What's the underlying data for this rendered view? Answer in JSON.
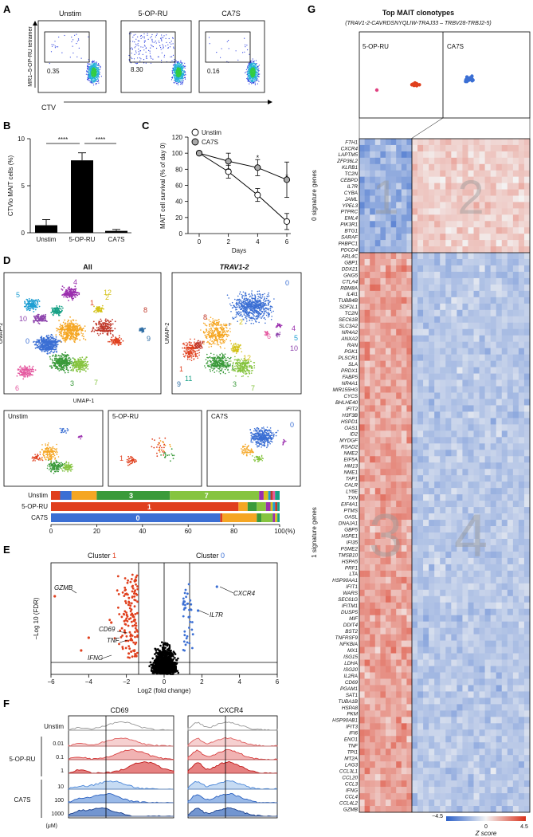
{
  "panels": {
    "A": {
      "label": "A",
      "conditions": [
        "Unstim",
        "5-OP-RU",
        "CA7S"
      ],
      "gate_values": [
        "0.35",
        "8.30",
        "0.16"
      ],
      "ylabel": "MR1–5-OP-RU tetramer",
      "xlabel": "CTV"
    },
    "B": {
      "label": "B",
      "chart_data": {
        "type": "bar",
        "categories": [
          "Unstim",
          "5-OP-RU",
          "CA7S"
        ],
        "values": [
          0.8,
          7.7,
          0.2
        ],
        "errors": [
          0.6,
          0.8,
          0.15
        ],
        "ylabel": "CTVlo MAIT cells (%)",
        "ylim": [
          0,
          10
        ],
        "yticks": [
          "0",
          "5",
          "10"
        ],
        "significance": [
          "****",
          "****"
        ]
      }
    },
    "C": {
      "label": "C",
      "chart_data": {
        "type": "line",
        "x": [
          0,
          2,
          4,
          6
        ],
        "series": [
          {
            "name": "Unstim",
            "values": [
              100,
              77,
              48,
              15
            ],
            "errors": [
              0,
              8,
              8,
              10
            ]
          },
          {
            "name": "CA7S",
            "values": [
              100,
              90,
              82,
              67
            ],
            "errors": [
              0,
              10,
              10,
              22
            ]
          }
        ],
        "xlabel": "Days",
        "ylabel": "MAIT cell survival (% of day 0)",
        "ylim": [
          0,
          120
        ],
        "yticks": [
          "0",
          "20",
          "40",
          "60",
          "80",
          "100",
          "120"
        ],
        "xticks": [
          "0",
          "2",
          "4",
          "6"
        ],
        "stars": [
          "*",
          "*"
        ]
      }
    },
    "D": {
      "label": "D",
      "umap_titles": [
        "All",
        "TRAV1-2"
      ],
      "axis_x": "UMAP-1",
      "axis_y": "UMAP-2",
      "cluster_labels_all": [
        "0",
        "1",
        "2",
        "3",
        "4",
        "5",
        "6",
        "7",
        "8",
        "9",
        "10",
        "11",
        "12"
      ],
      "cluster_labels_trav": [
        "0",
        "1",
        "2",
        "3",
        "4",
        "5",
        "6",
        "7",
        "8",
        "9",
        "10",
        "11",
        "12"
      ],
      "sub_titles": [
        "Unstim",
        "5-OP-RU",
        "CA7S"
      ],
      "sub_labels": [
        "1",
        "0"
      ],
      "bar_rows": [
        "Unstim",
        "5-OP-RU",
        "CA7S"
      ],
      "bar_inner_labels": [
        "3",
        "7",
        "1",
        "0"
      ],
      "bar_ticks": [
        "0",
        "20",
        "40",
        "60",
        "80",
        "100"
      ],
      "bar_unit": "(%)",
      "colors": {
        "c0": "#3b6fd4",
        "c1": "#e0401e",
        "c2": "#f5a623",
        "c3": "#3a9a3a",
        "c7": "#86c440",
        "c4": "#9b2fae",
        "c5": "#1f9fd3",
        "c6": "#e55ba1",
        "c8": "#c0392b",
        "c9": "#2e6da4",
        "c10": "#8e44ad",
        "c11": "#16a085",
        "c12": "#d4c21a"
      }
    },
    "E": {
      "label": "E",
      "chart_data": {
        "type": "scatter",
        "cluster_left": "Cluster",
        "cluster_left_num": "1",
        "cluster_right": "Cluster",
        "cluster_right_num": "0",
        "genes": [
          "GZMB",
          "CD69",
          "TNF",
          "IFNG",
          "CXCR4",
          "IL7R"
        ],
        "xlabel": "Log2 (fold change)",
        "ylabel": "−Log 10 (FDR)",
        "xticks": [
          "−6",
          "−4",
          "−2",
          "0",
          "2",
          "4",
          "6"
        ],
        "xlim": [
          -6,
          6
        ]
      }
    },
    "F": {
      "label": "F",
      "columns": [
        "CD69",
        "CXCR4"
      ],
      "unstim": "Unstim",
      "group1": "5-OP-RU",
      "doses1": [
        "0.01",
        "0.1",
        "1"
      ],
      "group2": "CA7S",
      "doses2": [
        "10",
        "100",
        "1000"
      ],
      "unit": "(μM)"
    },
    "G": {
      "label": "G",
      "title": "Top MAIT clonotypes",
      "subtitle": "(TRAV1-2-CAVRDSNYQLIW-TRAJ33 – TRBV28-TRBJ2-5)",
      "clone_panels": [
        "5-OP-RU",
        "CA7S"
      ],
      "block_labels": [
        "1",
        "2",
        "3",
        "4"
      ],
      "group0_label": "0 signature genes",
      "group1_label": "1 signature genes",
      "genes0": [
        "FTH1",
        "CXCR4",
        "LAPTM5",
        "ZFP36L2",
        "KLRB1",
        "TC2N",
        "CEBPD",
        "IL7R",
        "CYBA",
        "JAML",
        "YPEL3",
        "PTPRC",
        "EML4",
        "PIK3R1",
        "BTG1",
        "SARAF",
        "PABPC1",
        "PDCD4"
      ],
      "genes1": [
        "ARL4C",
        "GBP1",
        "DDX21",
        "GNG5",
        "CTLA4",
        "RBM8A",
        "IL4I1",
        "TUBB4B",
        "SDF2L1",
        "TC2N",
        "SEC61B",
        "SLC3A2",
        "NR4A2",
        "ANXA2",
        "RAN",
        "PGK1",
        "PLSCR1",
        "SLA",
        "PRDX1",
        "FABP5",
        "NR4A1",
        "MIR155HG",
        "CYCS",
        "BHLHE40",
        "IFIT2",
        "H3F3B",
        "HSPD1",
        "OAS1",
        "ID2",
        "MYDGF",
        "RSAD2",
        "NME2",
        "EIF5A",
        "HM13",
        "NME1",
        "TAP1",
        "CALR",
        "LY6E",
        "TXN",
        "EIF4A1",
        "PTMS",
        "OASL",
        "DNAJA1",
        "GBP5",
        "HSPE1",
        "IFI35",
        "PSME2",
        "TMSB10",
        "HSPA5",
        "PRF1",
        "LTA",
        "HSP90AA1",
        "IFIT1",
        "WARS",
        "SEC61G",
        "IFITM1",
        "DUSP5",
        "MIF",
        "DDIT4",
        "BST2",
        "TNFRSF9",
        "NFKBIA",
        "MX1",
        "ISG15",
        "LDHA",
        "ISG20",
        "IL2RA",
        "CD69",
        "PGAM1",
        "SAT1",
        "TUBA1B",
        "HSPA8",
        "PKM",
        "HSP90AB1",
        "IFIT3",
        "IFI6",
        "ENO1",
        "TNF",
        "TPI1",
        "MT2A",
        "LAG3",
        "CCL3L1",
        "CCL20",
        "CCL3",
        "IFNG",
        "CCL4",
        "CCL4L2",
        "GZMB"
      ],
      "scale_ticks": [
        "−4.5",
        "0",
        "4.5"
      ],
      "scale_label": "Z score"
    }
  }
}
